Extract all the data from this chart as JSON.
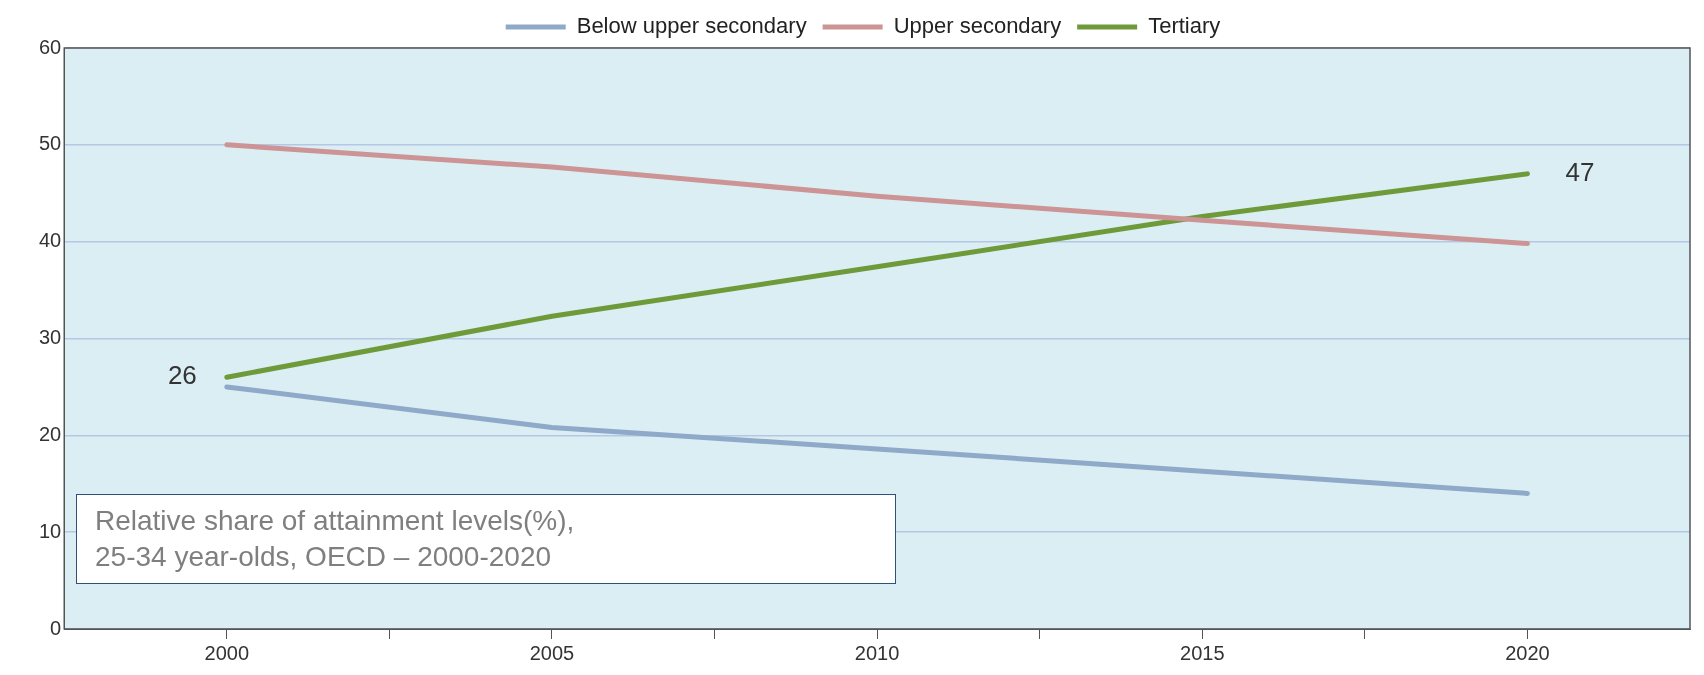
{
  "chart_data": {
    "type": "line",
    "x": [
      2000,
      2005,
      2010,
      2015,
      2020
    ],
    "series": [
      {
        "name": "Below upper secondary",
        "color": "#8fa9c9",
        "values": [
          25.0,
          20.8,
          18.6,
          16.3,
          14.0
        ]
      },
      {
        "name": "Upper secondary",
        "color": "#cc9494",
        "values": [
          50.0,
          47.7,
          44.7,
          42.2,
          39.8
        ]
      },
      {
        "name": "Tertiary",
        "color": "#6e9a3a",
        "values": [
          26,
          32.3,
          37.4,
          42.6,
          47
        ],
        "value_labels": [
          "26",
          null,
          null,
          null,
          "47"
        ]
      }
    ],
    "xlim": [
      1997.5,
      2022.5
    ],
    "xticks": [
      {
        "value": 2000,
        "label": "2000"
      },
      {
        "value": 2002.5,
        "label": null
      },
      {
        "value": 2005,
        "label": "2005"
      },
      {
        "value": 2007.5,
        "label": null
      },
      {
        "value": 2010,
        "label": "2010"
      },
      {
        "value": 2012.5,
        "label": null
      },
      {
        "value": 2015,
        "label": "2015"
      },
      {
        "value": 2017.5,
        "label": null
      },
      {
        "value": 2020,
        "label": "2020"
      }
    ],
    "ylim": [
      0,
      60
    ],
    "yticks": [
      0,
      10,
      20,
      30,
      40,
      50,
      60
    ],
    "grid": "y",
    "legend": "top",
    "marker": "none",
    "line_style": "solid",
    "annotations": [
      "Relative share of attainment levels(%),\n25-34 year-olds, OECD – 2000-2020"
    ]
  }
}
